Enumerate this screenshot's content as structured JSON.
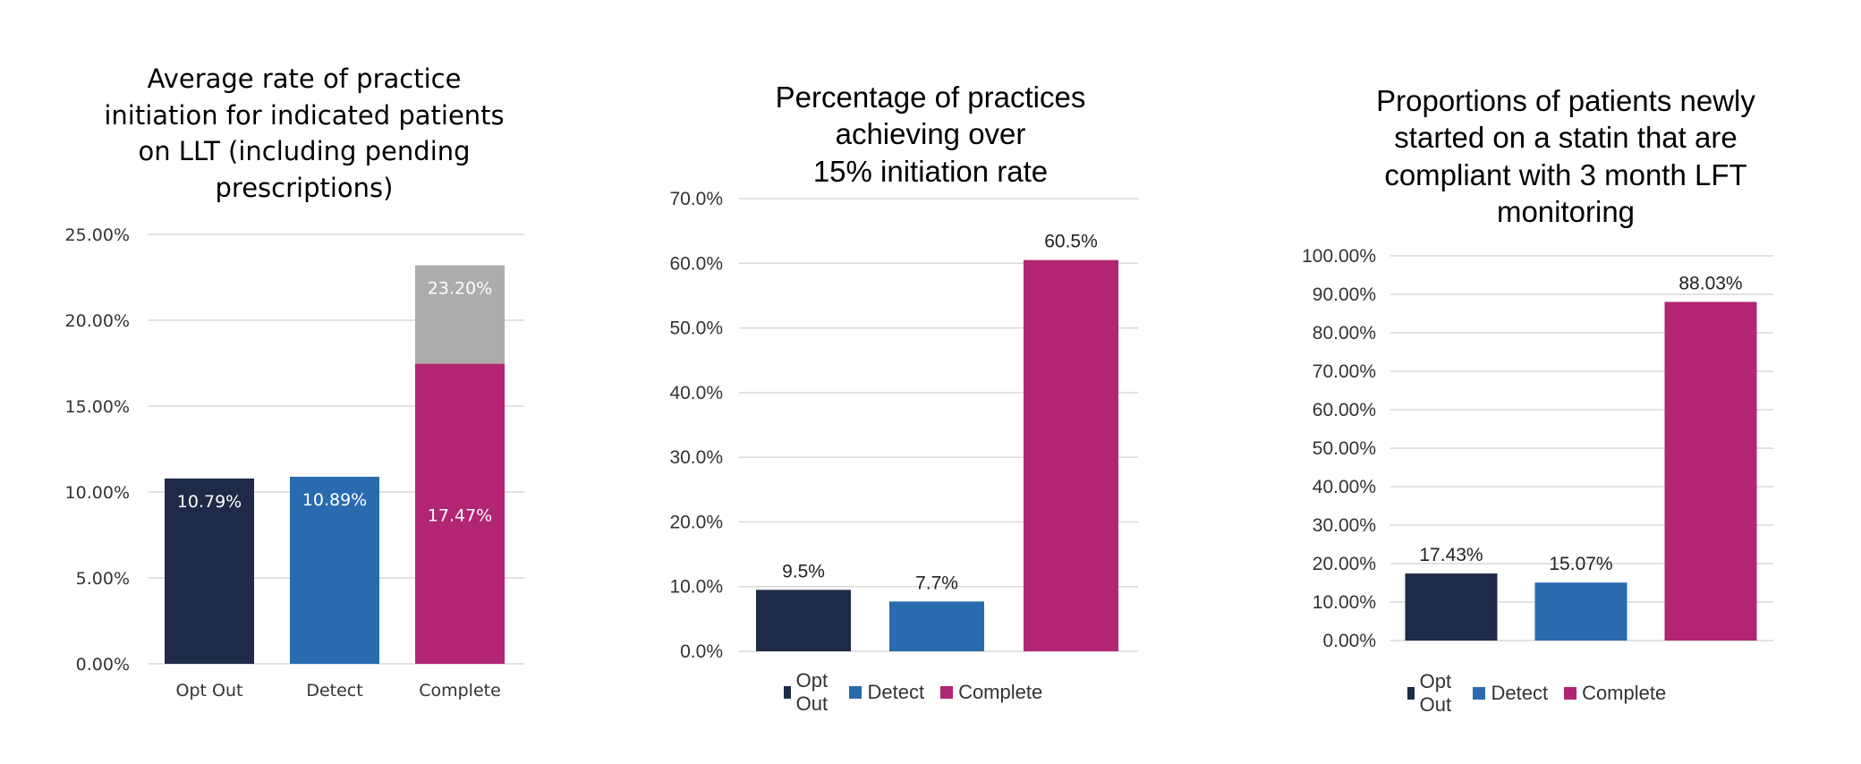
{
  "colors": {
    "opt_out": "#1e2a47",
    "detect": "#2a6bb0",
    "complete": "#b22573",
    "pending": "#aeabab",
    "grid": "#d9d9d9"
  },
  "chart_data": [
    {
      "type": "bar",
      "title": [
        "Average rate of practice",
        "initiation for indicated patients",
        "on LLT (including pending",
        "prescriptions)"
      ],
      "categories": [
        "Opt Out",
        "Detect",
        "Complete"
      ],
      "series": [
        {
          "values": [
            10.79,
            10.89,
            17.47
          ],
          "labels": [
            "10.79%",
            "10.89%",
            "17.47%"
          ]
        },
        {
          "values": [
            0,
            0,
            5.73
          ],
          "labels": [
            "",
            "",
            "23.20%"
          ]
        }
      ],
      "ylim": [
        0,
        25
      ],
      "yticks": [
        "0.00%",
        "5.00%",
        "10.00%",
        "15.00%",
        "20.00%",
        "25.00%"
      ],
      "stacked": true,
      "legend": "none",
      "grid": true
    },
    {
      "type": "bar",
      "title": [
        "Percentage of practices",
        "achieving over",
        "15% initiation rate"
      ],
      "categories": [
        "Opt Out",
        "Detect",
        "Complete"
      ],
      "values": [
        9.5,
        7.7,
        60.5
      ],
      "labels": [
        "9.5%",
        "7.7%",
        "60.5%"
      ],
      "ylim": [
        0,
        70
      ],
      "yticks": [
        "0.0%",
        "10.0%",
        "20.0%",
        "30.0%",
        "40.0%",
        "50.0%",
        "60.0%",
        "70.0%"
      ],
      "legend": "bottom",
      "legend_entries": [
        "Opt Out",
        "Detect",
        "Complete"
      ],
      "grid": true
    },
    {
      "type": "bar",
      "title": [
        "Proportions of patients newly",
        "started on a statin that are",
        "compliant with 3 month LFT",
        "monitoring"
      ],
      "categories": [
        "Opt Out",
        "Detect",
        "Complete"
      ],
      "values": [
        17.43,
        15.07,
        88.03
      ],
      "labels": [
        "17.43%",
        "15.07%",
        "88.03%"
      ],
      "ylim": [
        0,
        100
      ],
      "yticks": [
        "0.00%",
        "10.00%",
        "20.00%",
        "30.00%",
        "40.00%",
        "50.00%",
        "60.00%",
        "70.00%",
        "80.00%",
        "90.00%",
        "100.00%"
      ],
      "legend": "bottom",
      "legend_entries": [
        "Opt Out",
        "Detect",
        "Complete"
      ],
      "grid": true
    }
  ]
}
